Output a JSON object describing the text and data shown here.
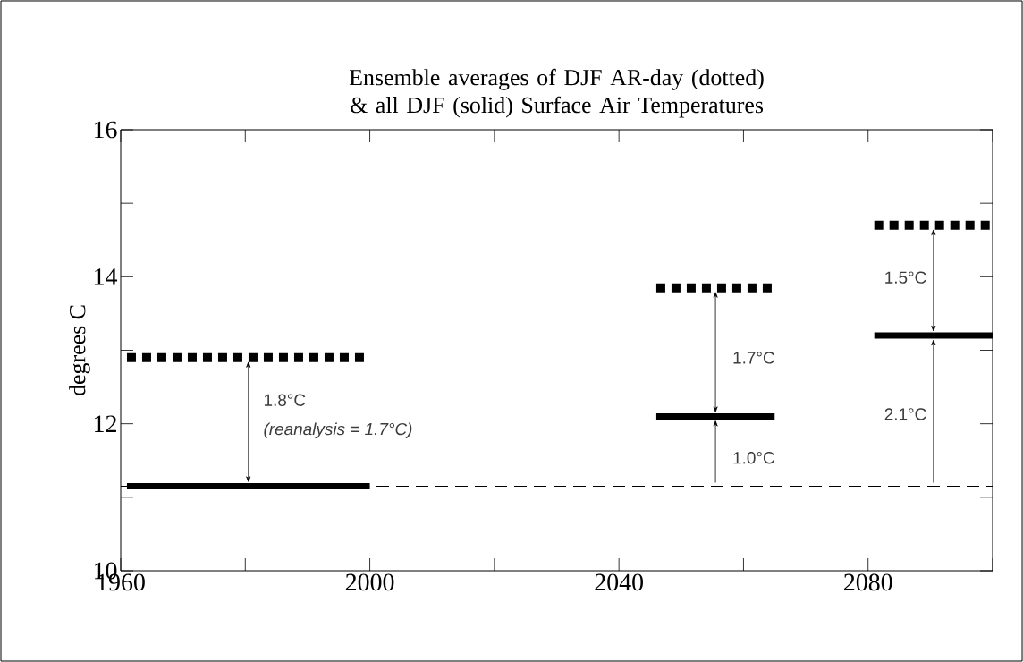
{
  "chart_data": {
    "type": "line",
    "title": "Ensemble averages of DJF AR-day (dotted) & all DJF (solid) Surface Air Temperatures",
    "ylabel": "degrees C",
    "xlim": [
      1960,
      2100
    ],
    "ylim": [
      10,
      16
    ],
    "xticks": [
      1960,
      {
        "value": 1980,
        "label": null
      },
      2000,
      {
        "value": 2020,
        "label": null
      },
      2040,
      {
        "value": 2060,
        "label": null
      },
      2080,
      {
        "value": 2100,
        "label": null
      }
    ],
    "yticks": [
      10,
      {
        "value": 11,
        "label": null
      },
      12,
      {
        "value": 13,
        "label": null
      },
      14,
      {
        "value": 15,
        "label": null
      },
      16
    ],
    "grid": false,
    "marker": "none",
    "series": [
      {
        "color": "#000000",
        "line_style": "solid",
        "x": [
          1961,
          2000
        ],
        "values": [
          11.15,
          11.15
        ]
      },
      {
        "color": "#000000",
        "line_style": "dotted",
        "x": [
          1961,
          2000
        ],
        "values": [
          12.9,
          12.9
        ]
      },
      {
        "color": "#000000",
        "line_style": "solid",
        "x": [
          2046,
          2065
        ],
        "values": [
          12.1,
          12.1
        ]
      },
      {
        "color": "#000000",
        "line_style": "dotted",
        "x": [
          2046,
          2065
        ],
        "values": [
          13.85,
          13.85
        ]
      },
      {
        "color": "#000000",
        "line_style": "solid",
        "x": [
          2081,
          2100
        ],
        "values": [
          13.2,
          13.2
        ]
      },
      {
        "color": "#000000",
        "line_style": "dotted",
        "x": [
          2081,
          2100
        ],
        "values": [
          14.7,
          14.7
        ]
      }
    ],
    "ref_lines": [
      {
        "axis": "y",
        "value": 11.15,
        "color": "#000000",
        "line_style": "dashed"
      }
    ],
    "annotations": [
      "1.8°C",
      "*(reanalysis = 1.7°C)*",
      "1.7°C",
      "1.0°C",
      "1.5°C",
      "2.1°C"
    ]
  }
}
